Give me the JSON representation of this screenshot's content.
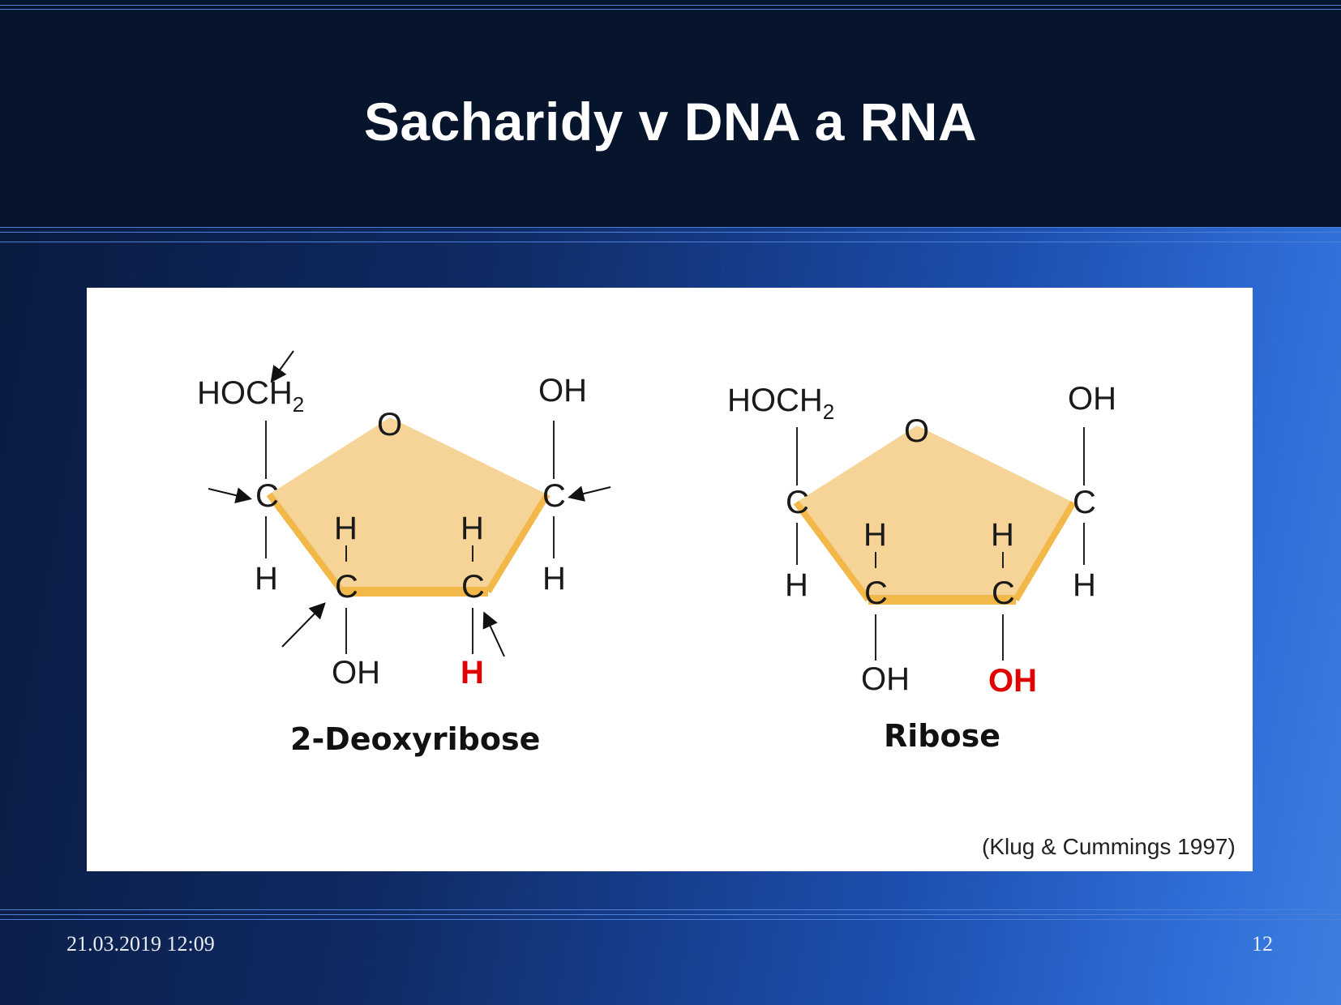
{
  "slide": {
    "title": "Sacharidy v DNA a RNA",
    "footer_date": "21.03.2019 12:09",
    "page_number": "12"
  },
  "figure": {
    "credit": "(Klug & Cummings 1997)",
    "highlight_color": "#e00000",
    "ring_color": "#f5cc85",
    "deoxyribose": {
      "name": "2-Deoxyribose",
      "ring_oxygen": "O",
      "c5_group": "HOCH",
      "c5_subscript": "2",
      "c1_group": "OH",
      "carbon": "C",
      "hydrogen": "H",
      "c3_group": "OH",
      "c2_group": "H"
    },
    "ribose": {
      "name": "Ribose",
      "ring_oxygen": "O",
      "c5_group": "HOCH",
      "c5_subscript": "2",
      "c1_group": "OH",
      "carbon": "C",
      "hydrogen": "H",
      "c3_group": "OH",
      "c2_group": "OH"
    }
  }
}
